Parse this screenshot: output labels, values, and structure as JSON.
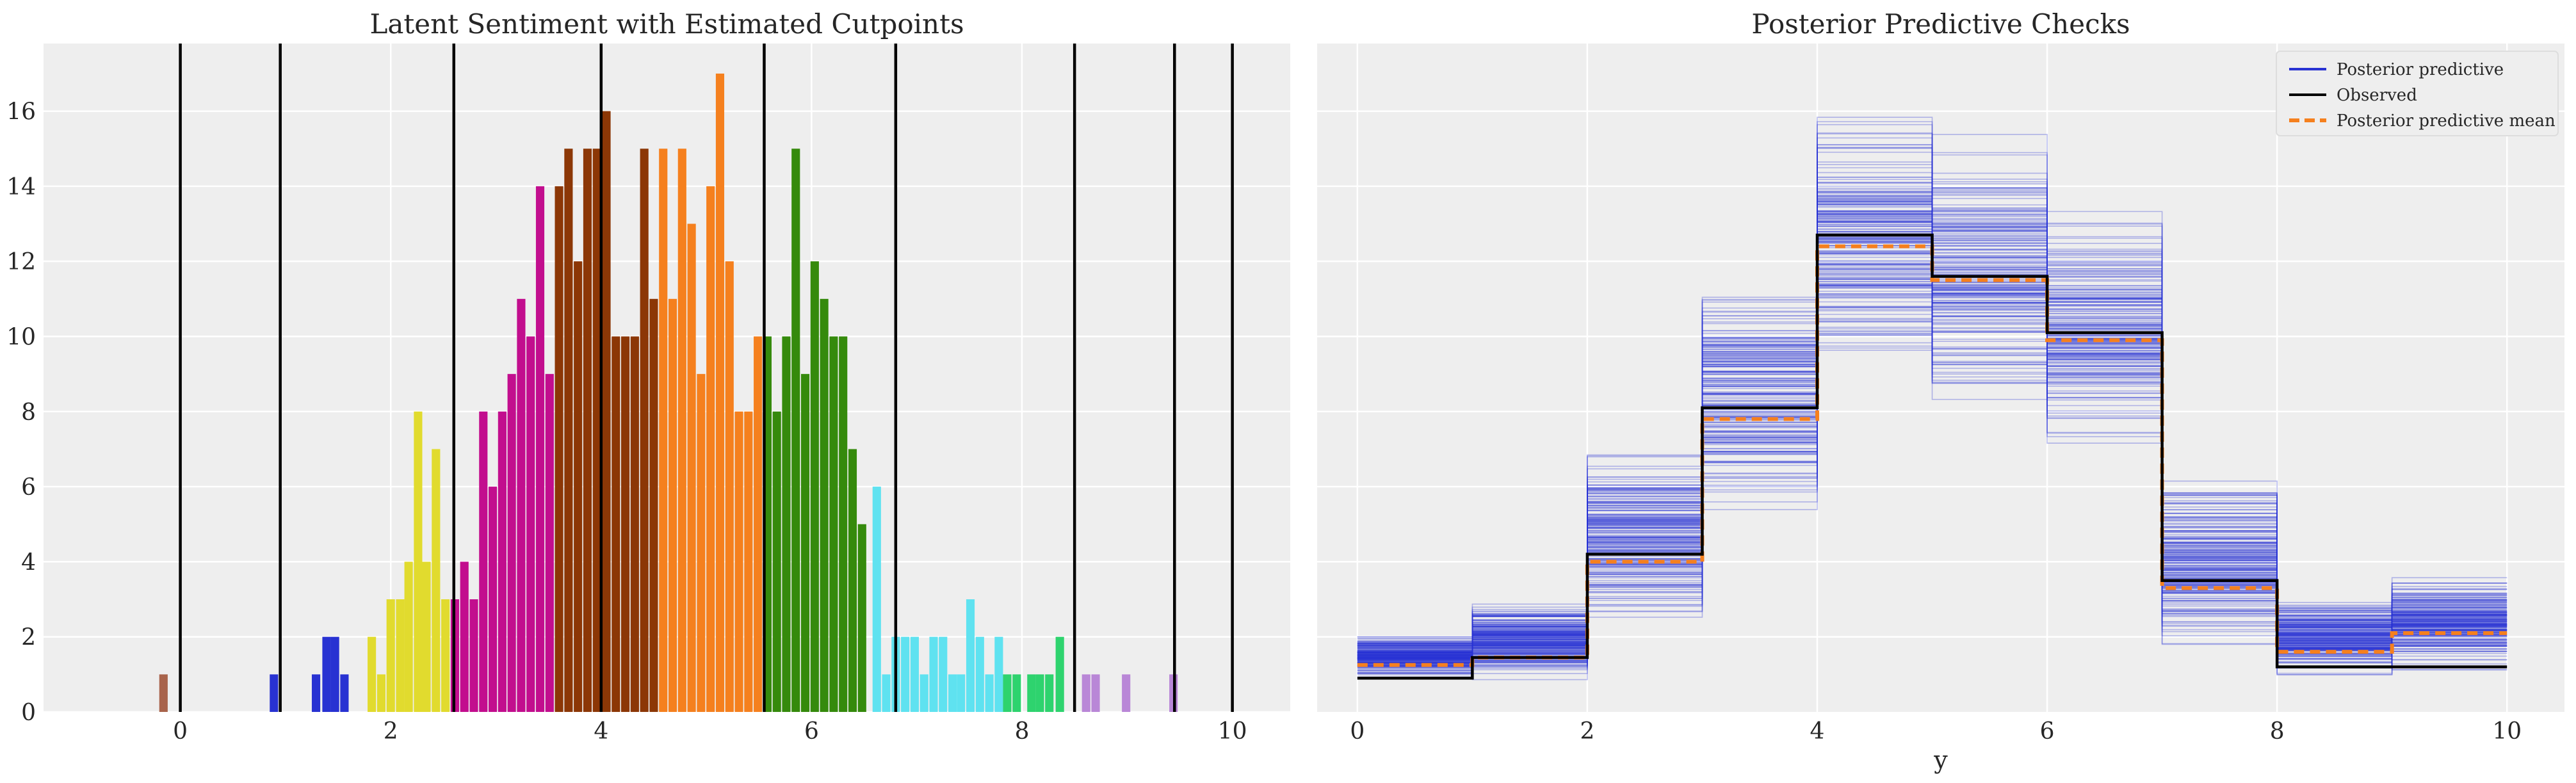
{
  "chart_data": [
    {
      "type": "bar",
      "title": "Latent Sentiment with Estimated Cutpoints",
      "xlabel": "",
      "ylabel": "",
      "xlim": [
        -1.3,
        10.55
      ],
      "ylim": [
        0,
        17.8
      ],
      "xticks": [
        0,
        2,
        4,
        6,
        8,
        10
      ],
      "yticks": [
        0,
        2,
        4,
        6,
        8,
        10,
        12,
        14,
        16
      ],
      "bar_width": 0.08,
      "grid": true,
      "cutpoints": [
        0.0,
        0.95,
        2.6,
        4.0,
        5.55,
        6.8,
        8.5,
        9.45,
        10.0
      ],
      "groups": [
        {
          "color": "#a8634b",
          "bars": [
            [
              -0.2,
              1
            ]
          ]
        },
        {
          "color": "#2832d2",
          "bars": [
            [
              0.85,
              1
            ],
            [
              1.25,
              1
            ],
            [
              1.35,
              2
            ],
            [
              1.43,
              2
            ],
            [
              1.52,
              1
            ]
          ]
        },
        {
          "color": "#e1db2e",
          "bars": [
            [
              1.78,
              2
            ],
            [
              1.87,
              1
            ],
            [
              1.96,
              3
            ],
            [
              2.05,
              3
            ],
            [
              2.13,
              4
            ],
            [
              2.22,
              8
            ],
            [
              2.3,
              4
            ],
            [
              2.39,
              7
            ],
            [
              2.48,
              3
            ]
          ]
        },
        {
          "color": "#c20e8e",
          "bars": [
            [
              2.57,
              3
            ],
            [
              2.66,
              4
            ],
            [
              2.75,
              3
            ],
            [
              2.84,
              8
            ],
            [
              2.93,
              6
            ],
            [
              3.02,
              8
            ],
            [
              3.11,
              9
            ],
            [
              3.2,
              11
            ],
            [
              3.29,
              10
            ],
            [
              3.38,
              14
            ],
            [
              3.47,
              9
            ]
          ]
        },
        {
          "color": "#8c3706",
          "bars": [
            [
              3.56,
              14
            ],
            [
              3.65,
              15
            ],
            [
              3.74,
              12
            ],
            [
              3.83,
              15
            ],
            [
              3.92,
              15
            ],
            [
              4.01,
              16
            ],
            [
              4.1,
              10
            ],
            [
              4.19,
              10
            ],
            [
              4.28,
              10
            ],
            [
              4.37,
              15
            ],
            [
              4.46,
              11
            ]
          ]
        },
        {
          "color": "#f5801e",
          "bars": [
            [
              4.55,
              15
            ],
            [
              4.64,
              11
            ],
            [
              4.73,
              15
            ],
            [
              4.82,
              13
            ],
            [
              4.91,
              9
            ],
            [
              5.0,
              14
            ],
            [
              5.09,
              17
            ],
            [
              5.18,
              12
            ],
            [
              5.27,
              8
            ],
            [
              5.36,
              8
            ],
            [
              5.45,
              10
            ]
          ]
        },
        {
          "color": "#358a0c",
          "bars": [
            [
              5.54,
              10
            ],
            [
              5.63,
              8
            ],
            [
              5.72,
              10
            ],
            [
              5.81,
              15
            ],
            [
              5.9,
              9
            ],
            [
              5.99,
              12
            ],
            [
              6.08,
              11
            ],
            [
              6.17,
              10
            ],
            [
              6.26,
              10
            ],
            [
              6.35,
              7
            ],
            [
              6.44,
              5
            ]
          ]
        },
        {
          "color": "#5fe2f0",
          "bars": [
            [
              6.58,
              6
            ],
            [
              6.67,
              1
            ],
            [
              6.76,
              2
            ],
            [
              6.85,
              2
            ],
            [
              6.94,
              2
            ],
            [
              7.03,
              1
            ],
            [
              7.12,
              2
            ],
            [
              7.21,
              2
            ],
            [
              7.3,
              1
            ],
            [
              7.38,
              1
            ],
            [
              7.47,
              3
            ],
            [
              7.56,
              2
            ],
            [
              7.65,
              1
            ],
            [
              7.74,
              2
            ]
          ]
        },
        {
          "color": "#2ed36e",
          "bars": [
            [
              7.82,
              1
            ],
            [
              7.91,
              1
            ],
            [
              8.05,
              1
            ],
            [
              8.13,
              1
            ],
            [
              8.22,
              1
            ],
            [
              8.32,
              2
            ]
          ]
        },
        {
          "color": "#b987d7",
          "bars": [
            [
              8.57,
              1
            ],
            [
              8.66,
              1
            ],
            [
              8.95,
              1
            ],
            [
              9.4,
              1
            ]
          ]
        }
      ]
    },
    {
      "type": "line",
      "title": "Posterior Predictive Checks",
      "xlabel": "y",
      "ylabel": "",
      "xlim": [
        -0.35,
        10.5
      ],
      "ylim": [
        0,
        17.8
      ],
      "xticks": [
        0,
        2,
        4,
        6,
        8,
        10
      ],
      "grid": true,
      "legend": {
        "position": "top-right",
        "entries": [
          "Posterior predictive",
          "Observed",
          "Posterior predictive mean"
        ]
      },
      "bin_edges": [
        0,
        1,
        2,
        3,
        4,
        5,
        6,
        7,
        8,
        9,
        10
      ],
      "series": [
        {
          "name": "Observed",
          "color": "#000000",
          "values": [
            0.9,
            1.45,
            4.2,
            8.1,
            12.7,
            11.6,
            10.1,
            3.5,
            1.2,
            1.2
          ]
        },
        {
          "name": "Posterior predictive mean",
          "color": "#f5801e",
          "values": [
            1.25,
            1.45,
            4.0,
            7.8,
            12.4,
            11.5,
            9.9,
            3.3,
            1.6,
            2.1
          ]
        },
        {
          "name": "Posterior predictive",
          "color": "#2832d2",
          "draws": 200,
          "band_low": [
            0.85,
            0.8,
            2.0,
            4.9,
            8.4,
            7.0,
            6.6,
            1.4,
            0.8,
            0.9
          ],
          "band_high": [
            2.1,
            3.1,
            7.3,
            11.9,
            17.1,
            16.3,
            13.7,
            6.5,
            3.2,
            3.8
          ]
        }
      ]
    }
  ]
}
